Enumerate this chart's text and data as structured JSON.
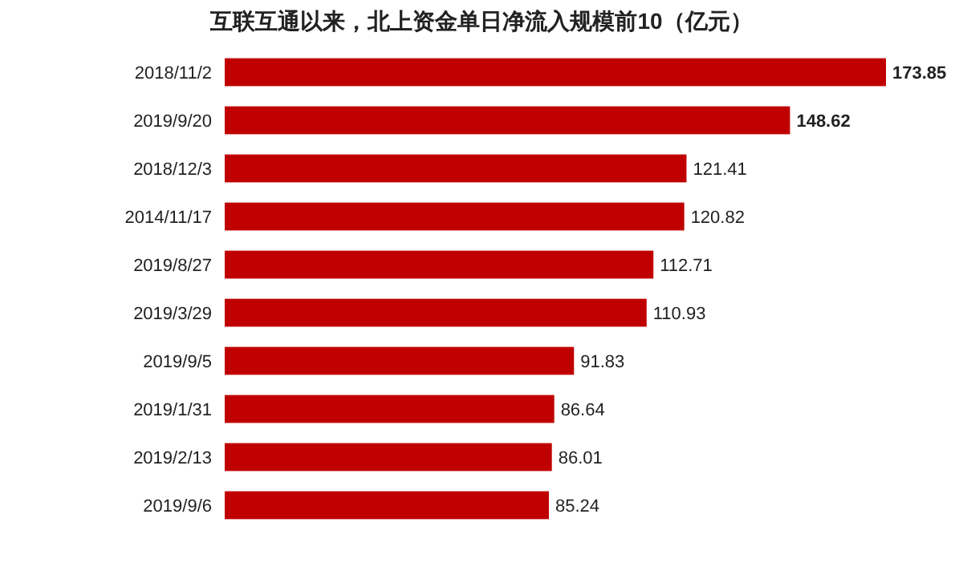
{
  "chart_data": {
    "type": "bar",
    "orientation": "horizontal",
    "title": "互联互通以来，北上资金单日净流入规模前10（亿元）",
    "categories": [
      "2018/11/2",
      "2019/9/20",
      "2018/12/3",
      "2014/11/17",
      "2019/8/27",
      "2019/3/29",
      "2019/9/5",
      "2019/1/31",
      "2019/2/13",
      "2019/9/6"
    ],
    "values": [
      173.85,
      148.62,
      121.41,
      120.82,
      112.71,
      110.93,
      91.83,
      86.64,
      86.01,
      85.24
    ],
    "color": "#c00000",
    "data_labels": true
  }
}
